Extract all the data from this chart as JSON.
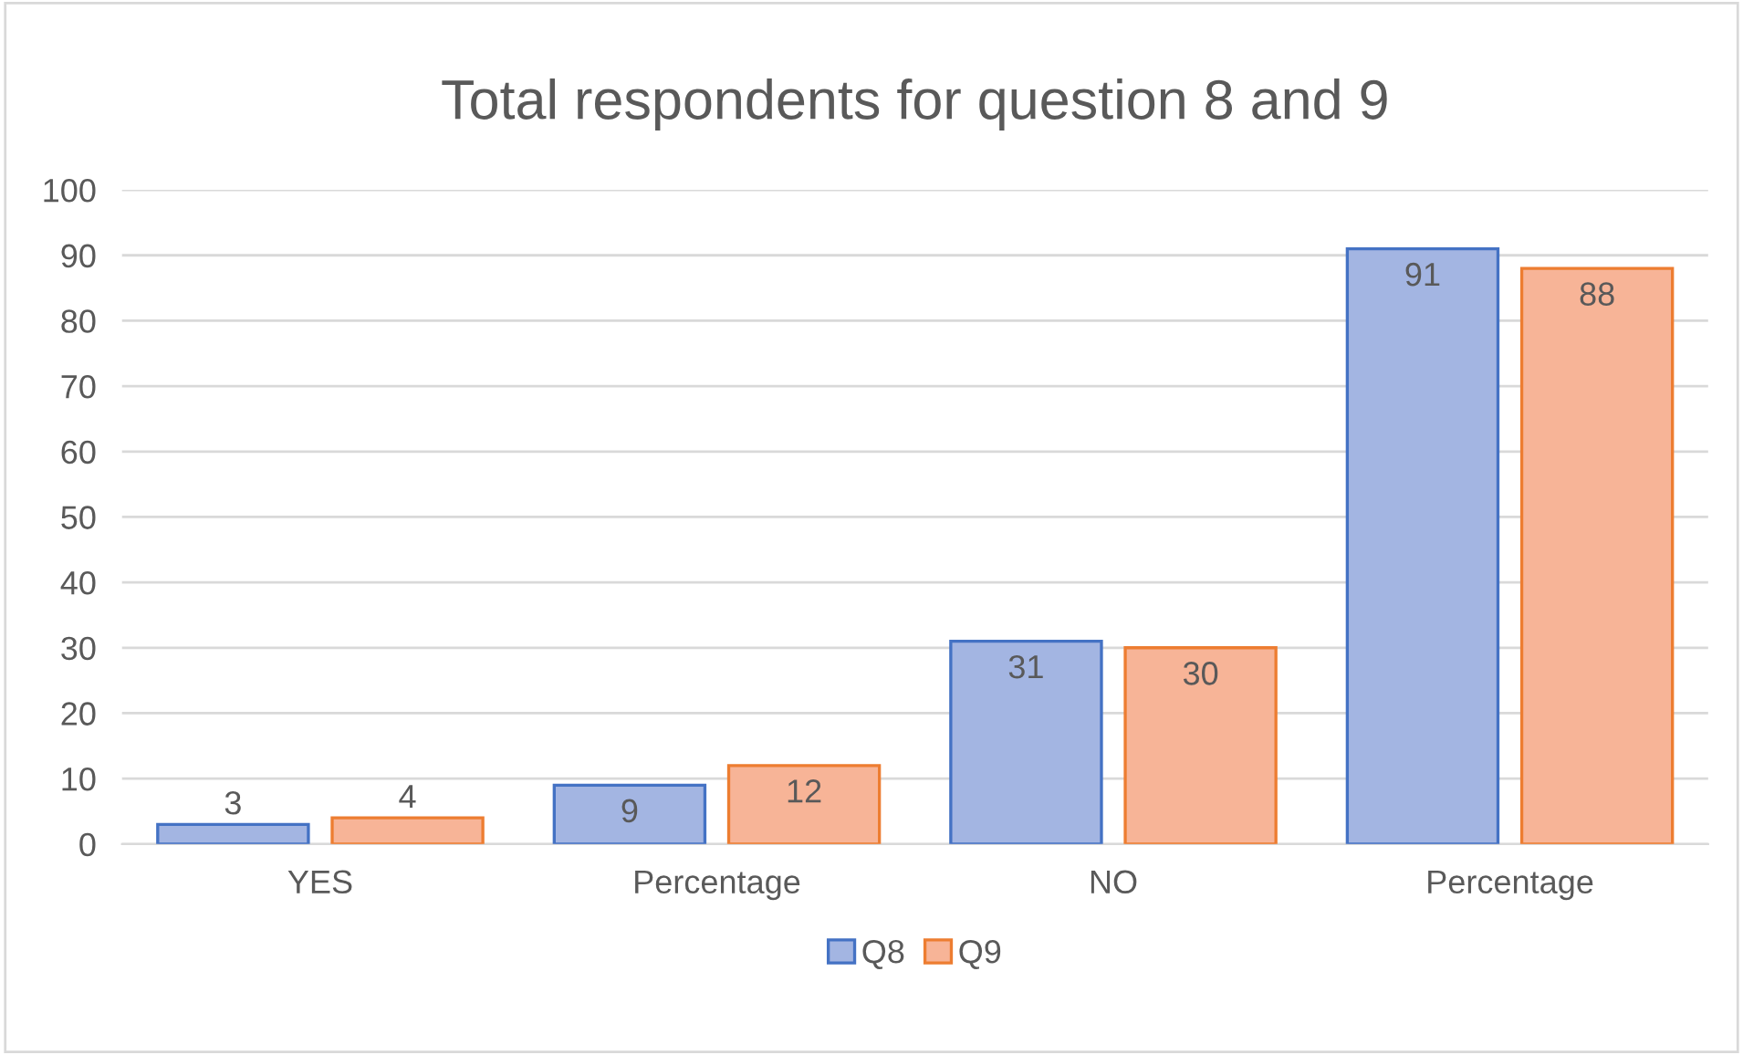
{
  "chart_data": {
    "type": "bar",
    "title": "Total respondents for question 8 and 9",
    "categories": [
      "YES",
      "Percentage",
      "NO",
      "Percentage"
    ],
    "series": [
      {
        "name": "Q8",
        "color": "#a3b5e2",
        "values": [
          3,
          9,
          31,
          91
        ]
      },
      {
        "name": "Q9",
        "color": "#f7b497",
        "values": [
          4,
          12,
          30,
          88
        ]
      }
    ],
    "ylim": [
      0,
      100
    ],
    "yticks": [
      0,
      10,
      20,
      30,
      40,
      50,
      60,
      70,
      80,
      90,
      100
    ],
    "grid": "y",
    "legend": "bottom",
    "data_labels": true
  }
}
